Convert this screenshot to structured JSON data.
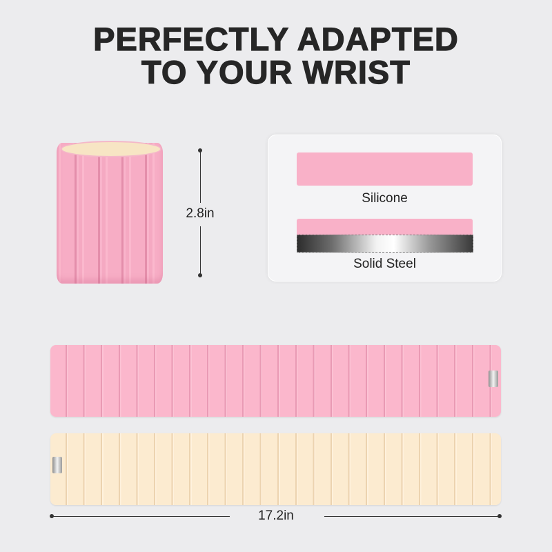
{
  "title": {
    "line1": "PERFECTLY ADAPTED",
    "line2": "TO YOUR WRIST"
  },
  "height_label": "2.8in",
  "materials": [
    {
      "label": "Silicone"
    },
    {
      "label": "Solid Steel"
    }
  ],
  "length_label": "17.2in",
  "colors": {
    "background": "#ececee",
    "pink": "#f9b1c8",
    "beige": "#fcebd0",
    "text": "#262626"
  }
}
